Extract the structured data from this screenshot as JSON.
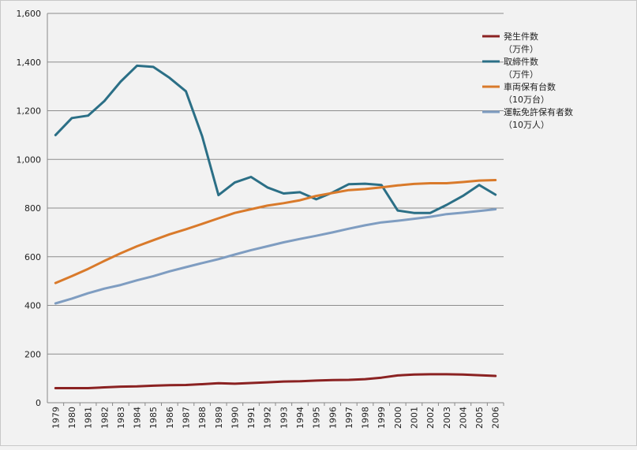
{
  "chart_data": {
    "type": "line",
    "x": [
      "1979",
      "1980",
      "1981",
      "1982",
      "1983",
      "1984",
      "1985",
      "1986",
      "1987",
      "1988",
      "1989",
      "1990",
      "1991",
      "1992",
      "1993",
      "1994",
      "1995",
      "1996",
      "1997",
      "1998",
      "1999",
      "2000",
      "2001",
      "2002",
      "2003",
      "2004",
      "2005",
      "2006"
    ],
    "ylim": [
      0,
      1600
    ],
    "yticks": [
      0,
      200,
      400,
      600,
      800,
      1000,
      1200,
      1400,
      1600
    ],
    "ytick_labels": [
      "0",
      "200",
      "400",
      "600",
      "800",
      "1,000",
      "1,200",
      "1,400",
      "1,600"
    ],
    "grid": "horizontal",
    "legend_position": "right",
    "series": [
      {
        "name_lines": [
          "発生件数",
          "（万件）"
        ],
        "color": "#8b2222",
        "values": [
          60,
          60,
          60,
          63,
          66,
          67,
          70,
          72,
          73,
          76,
          80,
          78,
          81,
          84,
          87,
          88,
          91,
          93,
          94,
          97,
          103,
          112,
          116,
          117,
          117,
          116,
          113,
          110
        ]
      },
      {
        "name_lines": [
          "取締件数",
          "（万件）"
        ],
        "color": "#2b6f86",
        "values": [
          1100,
          1170,
          1180,
          1240,
          1320,
          1385,
          1380,
          1335,
          1280,
          1095,
          853,
          905,
          928,
          885,
          860,
          865,
          836,
          864,
          898,
          900,
          895,
          790,
          780,
          780,
          813,
          850,
          895,
          855
        ]
      },
      {
        "name_lines": [
          "車両保有台数",
          "（10万台）"
        ],
        "color": "#d97a2b",
        "values": [
          492,
          520,
          550,
          583,
          614,
          643,
          668,
          692,
          713,
          735,
          758,
          780,
          795,
          810,
          820,
          832,
          850,
          862,
          874,
          878,
          885,
          893,
          899,
          902,
          902,
          907,
          913,
          915
        ]
      },
      {
        "name_lines": [
          "運転免許保有者数",
          "（10万人）"
        ],
        "color": "#7f9dc1",
        "values": [
          408,
          428,
          450,
          469,
          484,
          503,
          520,
          540,
          557,
          574,
          590,
          609,
          627,
          643,
          659,
          673,
          686,
          700,
          715,
          729,
          741,
          748,
          756,
          764,
          775,
          781,
          788,
          795
        ]
      }
    ]
  }
}
